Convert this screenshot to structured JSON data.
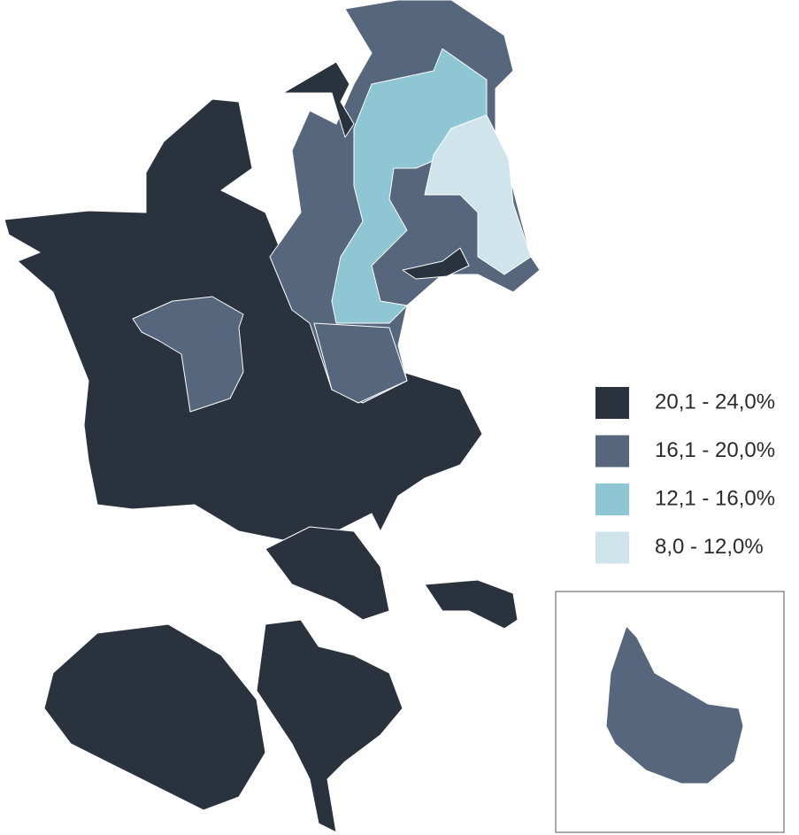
{
  "legend": {
    "items": [
      {
        "label": "20,1 - 24,0%",
        "color": "#2a323d"
      },
      {
        "label": "16,1 - 20,0%",
        "color": "#56667d"
      },
      {
        "label": "12,1 - 16,0%",
        "color": "#8fc6d3"
      },
      {
        "label": "8,0 - 12,0%",
        "color": "#cfe5eb"
      }
    ]
  }
}
